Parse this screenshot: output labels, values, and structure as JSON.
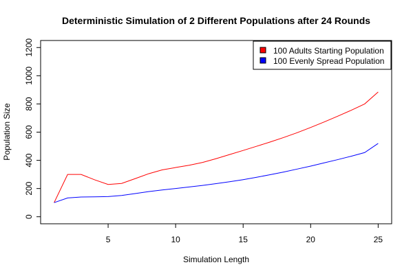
{
  "chart_data": {
    "type": "line",
    "title": "Deterministic Simulation of 2 Different Populations after 24 Rounds",
    "xlabel": "Simulation Length",
    "ylabel": "Population Size",
    "xlim": [
      0,
      26
    ],
    "ylim": [
      -50,
      1250
    ],
    "x_ticks": [
      5,
      10,
      15,
      20,
      25
    ],
    "y_ticks": [
      0,
      200,
      400,
      600,
      800,
      1000,
      1200
    ],
    "legend_position": "top-right",
    "x": [
      1,
      2,
      3,
      4,
      5,
      6,
      7,
      8,
      9,
      10,
      11,
      12,
      13,
      14,
      15,
      16,
      17,
      18,
      19,
      20,
      21,
      22,
      23,
      24,
      25
    ],
    "series": [
      {
        "name": "100 Adults Starting Population",
        "color": "#ff0000",
        "values": [
          100,
          300,
          300,
          262,
          229,
          236,
          270,
          305,
          332,
          349,
          365,
          385,
          412,
          441,
          470,
          500,
          530,
          562,
          596,
          633,
          672,
          713,
          755,
          800,
          885
        ]
      },
      {
        "name": "100 Evenly Spread Population",
        "color": "#0000ff",
        "values": [
          100,
          133,
          140,
          141,
          143,
          151,
          164,
          178,
          190,
          200,
          211,
          222,
          235,
          248,
          263,
          280,
          298,
          317,
          338,
          359,
          382,
          405,
          429,
          455,
          520
        ]
      }
    ],
    "grid": false
  }
}
